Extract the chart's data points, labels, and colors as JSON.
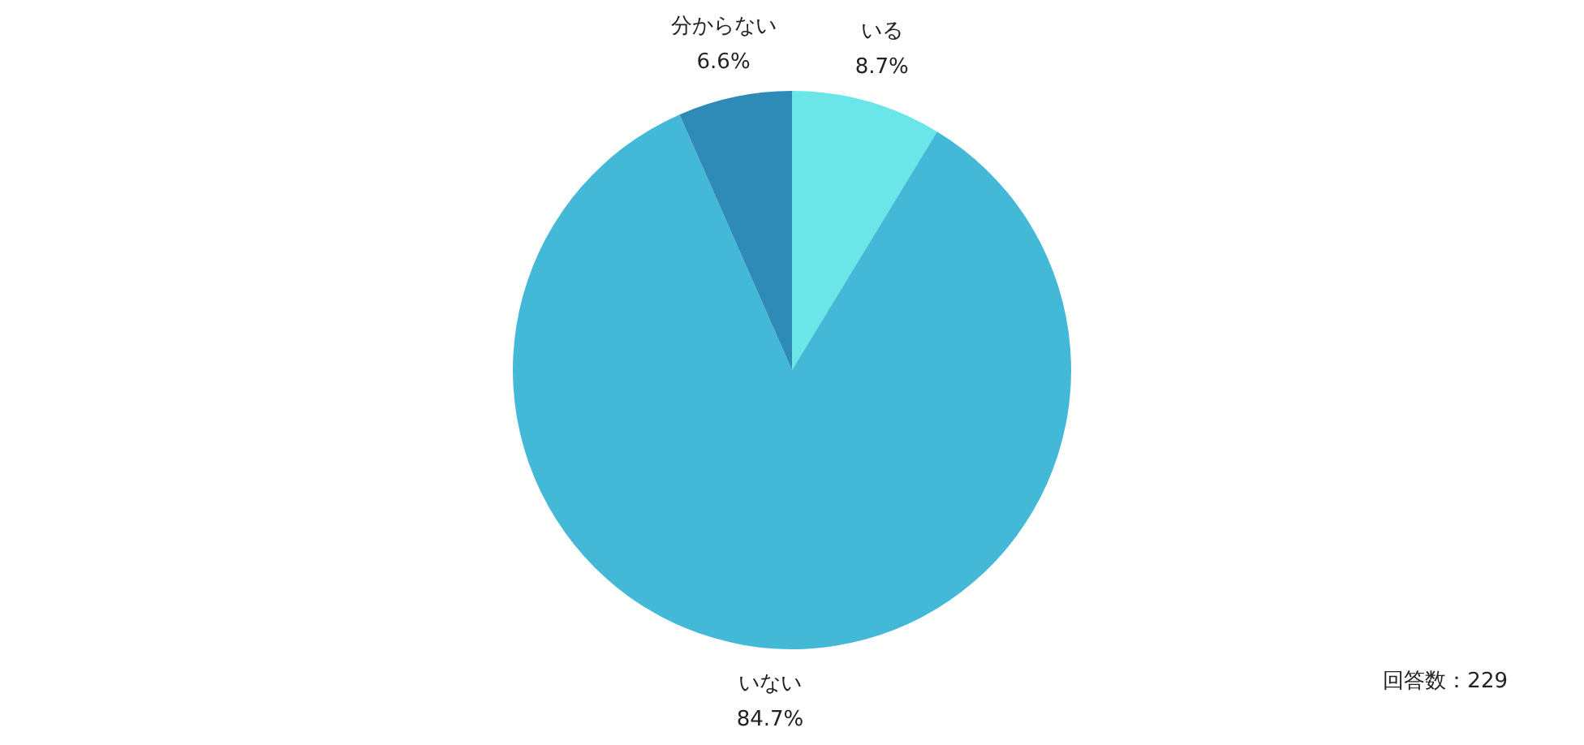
{
  "chart_data": {
    "type": "pie",
    "categories": [
      "いる",
      "いない",
      "分からない"
    ],
    "values": [
      8.7,
      84.7,
      6.6
    ],
    "colors": [
      "#6ae5e8",
      "#43b8d7",
      "#2e8bb8"
    ],
    "value_labels": [
      "8.7%",
      "84.7%",
      "6.6%"
    ],
    "annotations": [
      "回答数：229"
    ]
  }
}
